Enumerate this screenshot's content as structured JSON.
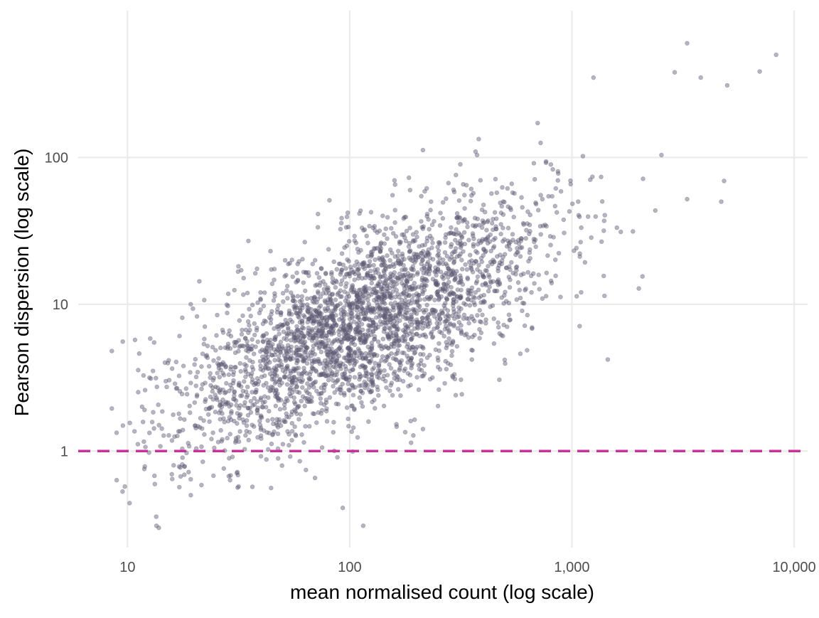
{
  "chart_data": {
    "type": "scatter",
    "title": "",
    "xlabel": "mean normalised count (log scale)",
    "ylabel": "Pearson dispersion (log scale)",
    "x_scale": "log10",
    "y_scale": "log10",
    "xlim": [
      6,
      11500
    ],
    "ylim": [
      0.22,
      1000
    ],
    "x_ticks": [
      10,
      100,
      1000,
      10000
    ],
    "x_tick_labels": [
      "10",
      "100",
      "1,000",
      "10,000"
    ],
    "y_ticks": [
      1,
      10,
      100
    ],
    "y_tick_labels": [
      "1",
      "10",
      "100"
    ],
    "grid": true,
    "legend": "none",
    "reference_line": {
      "y": 1,
      "style": "dashed",
      "color": "#c4359a"
    },
    "point_color": "#5e5873",
    "point_opacity": 0.45,
    "trend": {
      "x_range": [
        8.5,
        8300
      ],
      "log_y_at_log_x_1": 0.15,
      "slope": 0.68,
      "log_sd": 0.3,
      "n_points": 3000
    },
    "notable_points": [
      {
        "x": 3300,
        "y": 600
      },
      {
        "x": 8300,
        "y": 500
      },
      {
        "x": 7000,
        "y": 385
      },
      {
        "x": 2900,
        "y": 380
      },
      {
        "x": 5000,
        "y": 310
      },
      {
        "x": 3800,
        "y": 350
      },
      {
        "x": 1250,
        "y": 350
      },
      {
        "x": 8.5,
        "y": 4.8
      },
      {
        "x": 8.5,
        "y": 1.95
      },
      {
        "x": 9.5,
        "y": 0.53
      },
      {
        "x": 13.5,
        "y": 0.31
      },
      {
        "x": 115,
        "y": 0.31
      },
      {
        "x": 93,
        "y": 0.41
      },
      {
        "x": 35,
        "y": 27
      },
      {
        "x": 44,
        "y": 23
      },
      {
        "x": 98,
        "y": 42
      },
      {
        "x": 1450,
        "y": 4.2
      },
      {
        "x": 4700,
        "y": 50
      },
      {
        "x": 3300,
        "y": 52
      },
      {
        "x": 2000,
        "y": 12.8
      }
    ]
  }
}
